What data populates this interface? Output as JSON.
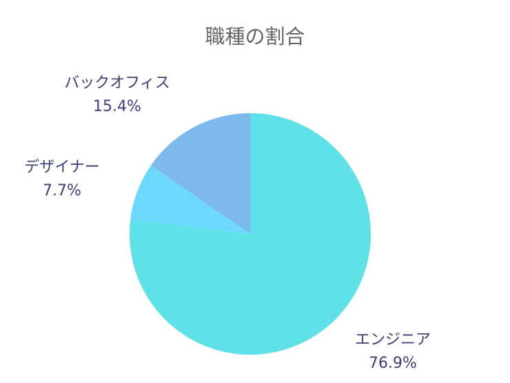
{
  "chart_data": {
    "type": "pie",
    "title": "職種の割合",
    "slices": [
      {
        "label": "エンジニア",
        "value": 76.9,
        "display": "76.9%",
        "color": "#5ee2e8"
      },
      {
        "label": "デザイナー",
        "value": 7.7,
        "display": "7.7%",
        "color": "#6dd8fe"
      },
      {
        "label": "バックオフィス",
        "value": 15.4,
        "display": "15.4%",
        "color": "#7db9ec"
      }
    ],
    "start_angle": "12 o'clock",
    "direction": "clockwise",
    "legend": "none"
  }
}
